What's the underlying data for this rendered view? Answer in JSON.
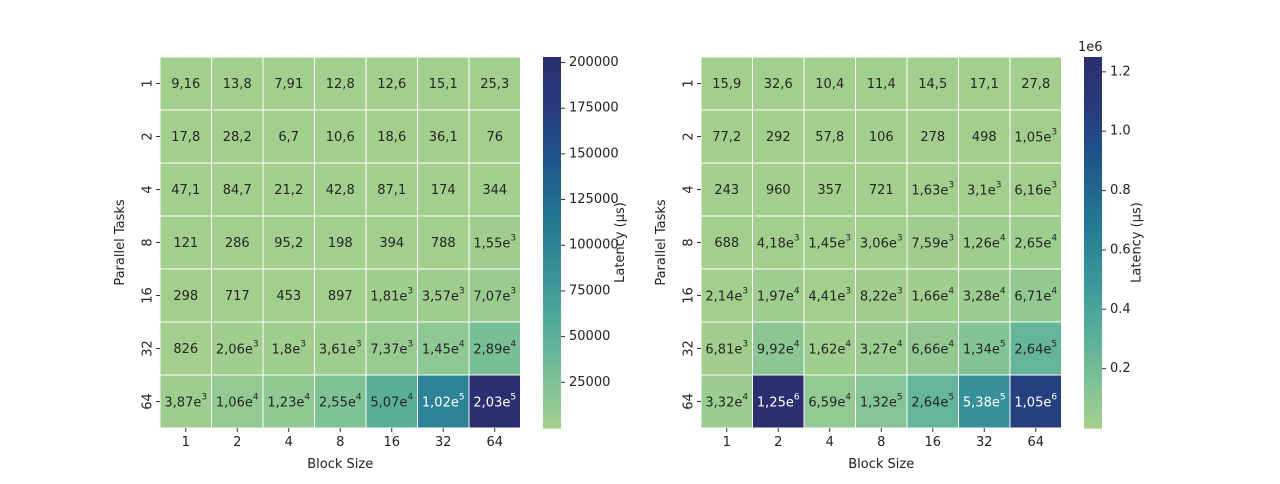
{
  "chart_data": [
    {
      "type": "heatmap",
      "xlabel": "Block Size",
      "ylabel": "Parallel Tasks",
      "x_categories": [
        "1",
        "2",
        "4",
        "8",
        "16",
        "32",
        "64"
      ],
      "y_categories": [
        "1",
        "2",
        "4",
        "8",
        "16",
        "32",
        "64"
      ],
      "colorbar": {
        "label": "Latency (µs)",
        "range": [
          0,
          203000
        ],
        "ticks": [
          "25000",
          "50000",
          "75000",
          "100000",
          "125000",
          "150000",
          "175000",
          "200000"
        ],
        "tick_values": [
          25000,
          50000,
          75000,
          100000,
          125000,
          150000,
          175000,
          200000
        ],
        "multiplier": ""
      },
      "values": [
        [
          9.16,
          13.8,
          7.91,
          12.8,
          12.6,
          15.1,
          25.3
        ],
        [
          17.8,
          28.2,
          6.7,
          10.6,
          18.6,
          36.1,
          76
        ],
        [
          47.1,
          84.7,
          21.2,
          42.8,
          87.1,
          174,
          344
        ],
        [
          121,
          286,
          95.2,
          198,
          394,
          788,
          1550
        ],
        [
          298,
          717,
          453,
          897,
          1810,
          3570,
          7070
        ],
        [
          826,
          2060,
          1800,
          3610,
          7370,
          14500,
          28900
        ],
        [
          3870,
          10600,
          12300,
          25500,
          50700,
          102000,
          203000
        ]
      ],
      "labels": [
        [
          "9,16",
          "13,8",
          "7,91",
          "12,8",
          "12,6",
          "15,1",
          "25,3"
        ],
        [
          "17,8",
          "28,2",
          "6,7",
          "10,6",
          "18,6",
          "36,1",
          "76"
        ],
        [
          "47,1",
          "84,7",
          "21,2",
          "42,8",
          "87,1",
          "174",
          "344"
        ],
        [
          "121",
          "286",
          "95,2",
          "198",
          "394",
          "788",
          "1,55e3"
        ],
        [
          "298",
          "717",
          "453",
          "897",
          "1,81e3",
          "3,57e3",
          "7,07e3"
        ],
        [
          "826",
          "2,06e3",
          "1,8e3",
          "3,61e3",
          "7,37e3",
          "1,45e4",
          "2,89e4"
        ],
        [
          "3,87e3",
          "1,06e4",
          "1,23e4",
          "2,55e4",
          "5,07e4",
          "1,02e5",
          "2,03e5"
        ]
      ]
    },
    {
      "type": "heatmap",
      "xlabel": "Block Size",
      "ylabel": "Parallel Tasks",
      "x_categories": [
        "1",
        "2",
        "4",
        "8",
        "16",
        "32",
        "64"
      ],
      "y_categories": [
        "1",
        "2",
        "4",
        "8",
        "16",
        "32",
        "64"
      ],
      "colorbar": {
        "label": "Latency (µs)",
        "range": [
          0,
          1250000
        ],
        "ticks": [
          "0.2",
          "0.4",
          "0.6",
          "0.8",
          "1.0",
          "1.2"
        ],
        "tick_values": [
          200000,
          400000,
          600000,
          800000,
          1000000,
          1200000
        ],
        "multiplier": "1e6"
      },
      "values": [
        [
          15.9,
          32.6,
          10.4,
          11.4,
          14.5,
          17.1,
          27.8
        ],
        [
          77.2,
          292,
          57.8,
          106,
          278,
          498,
          1050
        ],
        [
          243,
          960,
          357,
          721,
          1630,
          3100,
          6160
        ],
        [
          688,
          4180,
          1450,
          3060,
          7590,
          12600,
          26500
        ],
        [
          2140,
          19700,
          4410,
          8220,
          16600,
          32800,
          67100
        ],
        [
          6810,
          99200,
          16200,
          32700,
          66600,
          134000,
          264000
        ],
        [
          33200,
          1250000,
          65900,
          132000,
          264000,
          538000,
          1050000
        ]
      ],
      "labels": [
        [
          "15,9",
          "32,6",
          "10,4",
          "11,4",
          "14,5",
          "17,1",
          "27,8"
        ],
        [
          "77,2",
          "292",
          "57,8",
          "106",
          "278",
          "498",
          "1,05e3"
        ],
        [
          "243",
          "960",
          "357",
          "721",
          "1,63e3",
          "3,1e3",
          "6,16e3"
        ],
        [
          "688",
          "4,18e3",
          "1,45e3",
          "3,06e3",
          "7,59e3",
          "1,26e4",
          "2,65e4"
        ],
        [
          "2,14e3",
          "1,97e4",
          "4,41e3",
          "8,22e3",
          "1,66e4",
          "3,28e4",
          "6,71e4"
        ],
        [
          "6,81e3",
          "9,92e4",
          "1,62e4",
          "3,27e4",
          "6,66e4",
          "1,34e5",
          "2,64e5"
        ],
        [
          "3,32e4",
          "1,25e6",
          "6,59e4",
          "1,32e5",
          "2,64e5",
          "5,38e5",
          "1,05e6"
        ]
      ]
    }
  ],
  "colormap": [
    "#a3cf8e",
    "#7ec296",
    "#5aaf99",
    "#3f9a9a",
    "#2b8395",
    "#206a8f",
    "#21508a",
    "#28397a",
    "#2b2e6f"
  ]
}
